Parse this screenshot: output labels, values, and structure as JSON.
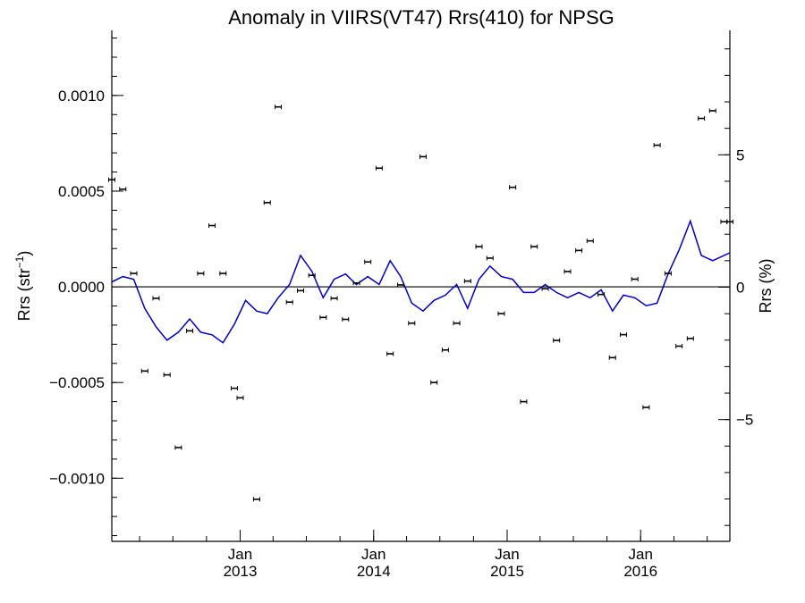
{
  "chart_data": {
    "type": "line",
    "title": "Anomaly in VIIRS(VT47) Rrs(410) for NPSG",
    "ylabel_left": "Rrs (str",
    "ylabel_left_sup": "−1",
    "ylabel_left_close": ")",
    "ylabel_right": "Rrs (%)",
    "x_range": [
      "2012-01-16",
      "2016-09-01"
    ],
    "x_ticks": [
      {
        "date": "2013-01-01",
        "month": "Jan",
        "year": "2013"
      },
      {
        "date": "2014-01-01",
        "month": "Jan",
        "year": "2014"
      },
      {
        "date": "2015-01-01",
        "month": "Jan",
        "year": "2015"
      },
      {
        "date": "2016-01-01",
        "month": "Jan",
        "year": "2016"
      }
    ],
    "y_left_range": [
      -0.00133,
      0.00134
    ],
    "y_left_tick_labels": [
      {
        "value": 0.001,
        "label": "0.0010"
      },
      {
        "value": 0.0005,
        "label": "0.0005"
      },
      {
        "value": 0.0,
        "label": "0.0000"
      },
      {
        "value": -0.0005,
        "label": "−0.0005"
      },
      {
        "value": -0.001,
        "label": "−0.0010"
      }
    ],
    "y_left_minor_step": 0.0001,
    "y_right_range": [
      -9.6,
      9.7
    ],
    "y_right_tick_labels": [
      {
        "value": 5,
        "label": "5"
      },
      {
        "value": 0,
        "label": "0"
      },
      {
        "value": -5,
        "label": "−5"
      }
    ],
    "y_right_minor_step": 1,
    "zero_line": true,
    "grid": false,
    "line_color": "#0000cc",
    "marker_color": "#000000",
    "series": [
      {
        "kind": "line",
        "axis": "right",
        "x": [
          "2012-01-16",
          "2012-02-15",
          "2012-03-16",
          "2012-04-15",
          "2012-05-16",
          "2012-06-15",
          "2012-07-16",
          "2012-08-16",
          "2012-09-15",
          "2012-10-16",
          "2012-11-15",
          "2012-12-16",
          "2013-01-16",
          "2013-02-15",
          "2013-03-16",
          "2013-04-15",
          "2013-05-16",
          "2013-06-15",
          "2013-07-16",
          "2013-08-16",
          "2013-09-15",
          "2013-10-16",
          "2013-11-15",
          "2013-12-16",
          "2014-01-16",
          "2014-02-15",
          "2014-03-16",
          "2014-04-15",
          "2014-05-16",
          "2014-06-15",
          "2014-07-16",
          "2014-08-16",
          "2014-09-15",
          "2014-10-16",
          "2014-11-15",
          "2014-12-16",
          "2015-01-16",
          "2015-02-15",
          "2015-03-16",
          "2015-04-15",
          "2015-05-16",
          "2015-06-15",
          "2015-07-16",
          "2015-08-16",
          "2015-09-15",
          "2015-10-16",
          "2015-11-15",
          "2015-12-16",
          "2016-01-16",
          "2016-02-15",
          "2016-03-16",
          "2016-04-15",
          "2016-05-16",
          "2016-06-15",
          "2016-07-16",
          "2016-08-16",
          "2016-09-01"
        ],
        "y": [
          0.2,
          0.4,
          0.3,
          -0.8,
          -1.5,
          -2.0,
          -1.7,
          -1.2,
          -1.7,
          -1.8,
          -2.1,
          -1.4,
          -0.5,
          -0.9,
          -1.0,
          -0.4,
          0.1,
          1.2,
          0.6,
          -0.4,
          0.3,
          0.5,
          0.1,
          0.4,
          0.1,
          1.0,
          0.4,
          -0.6,
          -0.9,
          -0.5,
          -0.3,
          0.1,
          -0.8,
          0.3,
          0.8,
          0.4,
          0.3,
          -0.2,
          -0.2,
          0.1,
          -0.2,
          -0.4,
          -0.2,
          -0.4,
          -0.1,
          -0.9,
          -0.3,
          -0.4,
          -0.7,
          -0.6,
          0.5,
          1.4,
          2.5,
          1.2,
          1.0,
          1.2,
          1.3
        ]
      },
      {
        "kind": "scatter",
        "axis": "left",
        "x": [
          "2012-01-16",
          "2012-02-15",
          "2012-03-16",
          "2012-04-15",
          "2012-05-16",
          "2012-06-15",
          "2012-07-16",
          "2012-08-16",
          "2012-09-15",
          "2012-10-16",
          "2012-11-15",
          "2012-12-16",
          "2013-01-01",
          "2013-02-15",
          "2013-03-16",
          "2013-04-15",
          "2013-05-16",
          "2013-06-15",
          "2013-07-16",
          "2013-08-16",
          "2013-09-15",
          "2013-10-16",
          "2013-11-15",
          "2013-12-16",
          "2014-01-16",
          "2014-02-15",
          "2014-03-16",
          "2014-04-15",
          "2014-05-16",
          "2014-06-15",
          "2014-07-16",
          "2014-08-16",
          "2014-09-15",
          "2014-10-16",
          "2014-11-15",
          "2014-12-16",
          "2015-01-16",
          "2015-02-15",
          "2015-03-16",
          "2015-04-15",
          "2015-05-16",
          "2015-06-15",
          "2015-07-16",
          "2015-08-16",
          "2015-09-15",
          "2015-10-16",
          "2015-11-15",
          "2015-12-16",
          "2016-01-16",
          "2016-02-15",
          "2016-03-16",
          "2016-04-15",
          "2016-05-16",
          "2016-06-15",
          "2016-07-16",
          "2016-08-16",
          "2016-09-01"
        ],
        "y": [
          0.00056,
          0.00051,
          7e-05,
          -0.00044,
          -6e-05,
          -0.00046,
          -0.00084,
          -0.00023,
          7e-05,
          0.00032,
          7e-05,
          -0.00053,
          -0.00058,
          -0.00111,
          0.00044,
          0.00094,
          -8e-05,
          -2e-05,
          6e-05,
          -0.00016,
          -6e-05,
          -0.00017,
          2e-05,
          0.00013,
          0.00062,
          -0.00035,
          1e-05,
          -0.00019,
          0.00068,
          -0.0005,
          -0.00033,
          -0.00019,
          3e-05,
          0.00021,
          0.00015,
          -0.00014,
          0.00052,
          -0.0006,
          0.00021,
          -1e-05,
          -0.00028,
          8e-05,
          0.00019,
          0.00024,
          -4e-05,
          -0.00037,
          -0.00025,
          4e-05,
          -0.00063,
          0.00074,
          7e-05,
          -0.00031,
          -0.00027,
          0.00088,
          0.00092,
          0.00034,
          0.00034
        ]
      }
    ]
  }
}
